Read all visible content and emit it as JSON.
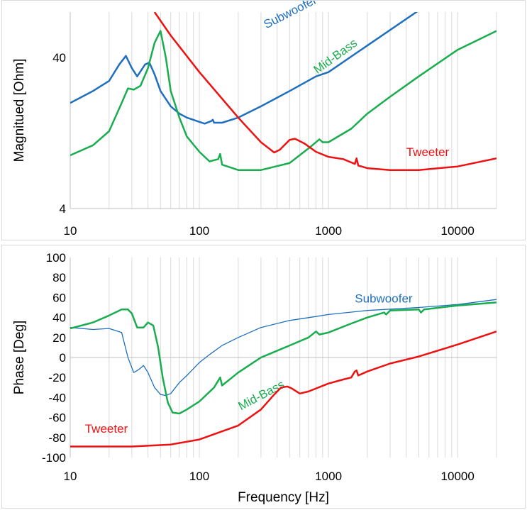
{
  "chart_data": [
    {
      "type": "line",
      "title": "",
      "xlabel": "",
      "ylabel": "Magnitued [Ohm]",
      "xscale": "log",
      "yscale": "log",
      "xlim": [
        10,
        20000
      ],
      "ylim": [
        4,
        80
      ],
      "grid": "vertical",
      "x_ticks": [
        {
          "value": 10,
          "label": "10"
        },
        {
          "value": 100,
          "label": "100"
        },
        {
          "value": 1000,
          "label": "1000"
        },
        {
          "value": 10000,
          "label": "10000"
        }
      ],
      "y_ticks": [
        {
          "value": 4,
          "label": "4"
        },
        {
          "value": 40,
          "label": "40"
        }
      ],
      "series": [
        {
          "name": "Subwoofer",
          "color": "#1f6fbf",
          "label_at": [
            330,
            62
          ],
          "label_rotate": -27,
          "points": [
            [
              10,
              20
            ],
            [
              15,
              24
            ],
            [
              20,
              28
            ],
            [
              24,
              36
            ],
            [
              27,
              41
            ],
            [
              30,
              34
            ],
            [
              33,
              30
            ],
            [
              38,
              36
            ],
            [
              41,
              37
            ],
            [
              45,
              31
            ],
            [
              50,
              24
            ],
            [
              60,
              19
            ],
            [
              70,
              17
            ],
            [
              80,
              16
            ],
            [
              100,
              15
            ],
            [
              110,
              14.6
            ],
            [
              124,
              15.2
            ],
            [
              127,
              15.5
            ],
            [
              130,
              14.8
            ],
            [
              150,
              14.8
            ],
            [
              200,
              16
            ],
            [
              300,
              19
            ],
            [
              500,
              24
            ],
            [
              800,
              30
            ],
            [
              1000,
              32
            ],
            [
              2000,
              48
            ],
            [
              5000,
              82
            ],
            [
              8000,
              110
            ]
          ]
        },
        {
          "name": "Mid-Bass",
          "color": "#1aad4f",
          "label_at": [
            820,
            31
          ],
          "label_rotate": -36,
          "points": [
            [
              10,
              9
            ],
            [
              15,
              10.5
            ],
            [
              20,
              13
            ],
            [
              25,
              20
            ],
            [
              28,
              25
            ],
            [
              31,
              24.5
            ],
            [
              35,
              26
            ],
            [
              40,
              34
            ],
            [
              45,
              50
            ],
            [
              50,
              60
            ],
            [
              55,
              40
            ],
            [
              60,
              24
            ],
            [
              70,
              16
            ],
            [
              80,
              12
            ],
            [
              100,
              9.5
            ],
            [
              120,
              8.2
            ],
            [
              140,
              8.5
            ],
            [
              145,
              9.2
            ],
            [
              150,
              7.8
            ],
            [
              200,
              7.2
            ],
            [
              300,
              7.2
            ],
            [
              500,
              8
            ],
            [
              700,
              10
            ],
            [
              850,
              11.5
            ],
            [
              900,
              11
            ],
            [
              1000,
              11
            ],
            [
              1500,
              13.5
            ],
            [
              2000,
              17
            ],
            [
              3000,
              22
            ],
            [
              5000,
              30
            ],
            [
              10000,
              45
            ],
            [
              20000,
              60
            ]
          ]
        },
        {
          "name": "Tweeter",
          "color": "#ee1111",
          "label_at": [
            4000,
            8.9
          ],
          "label_rotate": 0,
          "points": [
            [
              45,
              80
            ],
            [
              60,
              56
            ],
            [
              100,
              32
            ],
            [
              200,
              16
            ],
            [
              300,
              11
            ],
            [
              380,
              9.4
            ],
            [
              420,
              9.8
            ],
            [
              500,
              11.4
            ],
            [
              550,
              11.6
            ],
            [
              650,
              10.8
            ],
            [
              800,
              9.5
            ],
            [
              1000,
              8.8
            ],
            [
              1300,
              8.5
            ],
            [
              1600,
              7.9
            ],
            [
              1650,
              8.6
            ],
            [
              1700,
              7.7
            ],
            [
              2000,
              7.4
            ],
            [
              3000,
              7.2
            ],
            [
              5000,
              7.2
            ],
            [
              10000,
              7.6
            ],
            [
              20000,
              8.6
            ]
          ]
        }
      ]
    },
    {
      "type": "line",
      "title": "",
      "xlabel": "Frequency [Hz]",
      "ylabel": "Phase [Deg]",
      "xscale": "log",
      "xlim": [
        10,
        20000
      ],
      "ylim": [
        -100,
        100
      ],
      "grid": "vertical",
      "x_ticks": [
        {
          "value": 10,
          "label": "10"
        },
        {
          "value": 100,
          "label": "100"
        },
        {
          "value": 1000,
          "label": "1000"
        },
        {
          "value": 10000,
          "label": "10000"
        }
      ],
      "y_ticks": [
        {
          "value": 100,
          "label": "100"
        },
        {
          "value": 80,
          "label": "80"
        },
        {
          "value": 60,
          "label": "60"
        },
        {
          "value": 40,
          "label": "40"
        },
        {
          "value": 20,
          "label": "20"
        },
        {
          "value": 0,
          "label": "0"
        },
        {
          "value": -20,
          "label": "-20"
        },
        {
          "value": -40,
          "label": "-40"
        },
        {
          "value": -60,
          "label": "-60"
        },
        {
          "value": -80,
          "label": "-80"
        },
        {
          "value": -100,
          "label": "-100"
        }
      ],
      "series": [
        {
          "name": "Subwoofer",
          "color": "#1f6fbf",
          "width": 1.3,
          "label_at": [
            1600,
            55
          ],
          "label_rotate": 0,
          "points": [
            [
              10,
              30
            ],
            [
              15,
              28
            ],
            [
              20,
              29
            ],
            [
              25,
              25
            ],
            [
              28,
              0
            ],
            [
              31,
              -15
            ],
            [
              34,
              -12
            ],
            [
              37,
              -8
            ],
            [
              40,
              -15
            ],
            [
              45,
              -30
            ],
            [
              50,
              -37
            ],
            [
              55,
              -38
            ],
            [
              60,
              -36
            ],
            [
              70,
              -25
            ],
            [
              80,
              -18
            ],
            [
              100,
              -5
            ],
            [
              120,
              3
            ],
            [
              150,
              12
            ],
            [
              200,
              20
            ],
            [
              300,
              30
            ],
            [
              500,
              37
            ],
            [
              800,
              41
            ],
            [
              1000,
              43
            ],
            [
              2000,
              47
            ],
            [
              5000,
              50
            ],
            [
              10000,
              53
            ],
            [
              20000,
              58
            ]
          ]
        },
        {
          "name": "Mid-Bass",
          "color": "#1aad4f",
          "width": 2.5,
          "label_at": [
            210,
            -53
          ],
          "label_rotate": -28,
          "points": [
            [
              10,
              29
            ],
            [
              15,
              35
            ],
            [
              20,
              42
            ],
            [
              25,
              48
            ],
            [
              28,
              48
            ],
            [
              30,
              44
            ],
            [
              33,
              30
            ],
            [
              37,
              30
            ],
            [
              40,
              35
            ],
            [
              44,
              32
            ],
            [
              48,
              10
            ],
            [
              52,
              -20
            ],
            [
              57,
              -45
            ],
            [
              62,
              -55
            ],
            [
              70,
              -56
            ],
            [
              80,
              -52
            ],
            [
              100,
              -44
            ],
            [
              130,
              -30
            ],
            [
              145,
              -20
            ],
            [
              150,
              -28
            ],
            [
              200,
              -15
            ],
            [
              300,
              0
            ],
            [
              500,
              12
            ],
            [
              700,
              20
            ],
            [
              800,
              26
            ],
            [
              850,
              23
            ],
            [
              1000,
              25
            ],
            [
              1500,
              34
            ],
            [
              2000,
              40
            ],
            [
              2700,
              45
            ],
            [
              2800,
              43
            ],
            [
              3000,
              47
            ],
            [
              5000,
              48
            ],
            [
              5200,
              45
            ],
            [
              5500,
              48
            ],
            [
              10000,
              52
            ],
            [
              20000,
              55
            ]
          ]
        },
        {
          "name": "Tweeter",
          "color": "#ee1111",
          "width": 2.5,
          "label_at": [
            13,
            -75
          ],
          "label_rotate": 0,
          "points": [
            [
              10,
              -89
            ],
            [
              30,
              -89
            ],
            [
              60,
              -87
            ],
            [
              100,
              -82
            ],
            [
              200,
              -68
            ],
            [
              300,
              -52
            ],
            [
              380,
              -37
            ],
            [
              430,
              -30
            ],
            [
              480,
              -29
            ],
            [
              520,
              -31
            ],
            [
              600,
              -36
            ],
            [
              700,
              -34
            ],
            [
              1000,
              -26
            ],
            [
              1300,
              -22
            ],
            [
              1500,
              -20
            ],
            [
              1600,
              -14
            ],
            [
              1650,
              -13
            ],
            [
              1700,
              -18
            ],
            [
              2000,
              -14
            ],
            [
              3000,
              -6
            ],
            [
              5000,
              1
            ],
            [
              10000,
              13
            ],
            [
              20000,
              26
            ]
          ]
        }
      ]
    }
  ]
}
